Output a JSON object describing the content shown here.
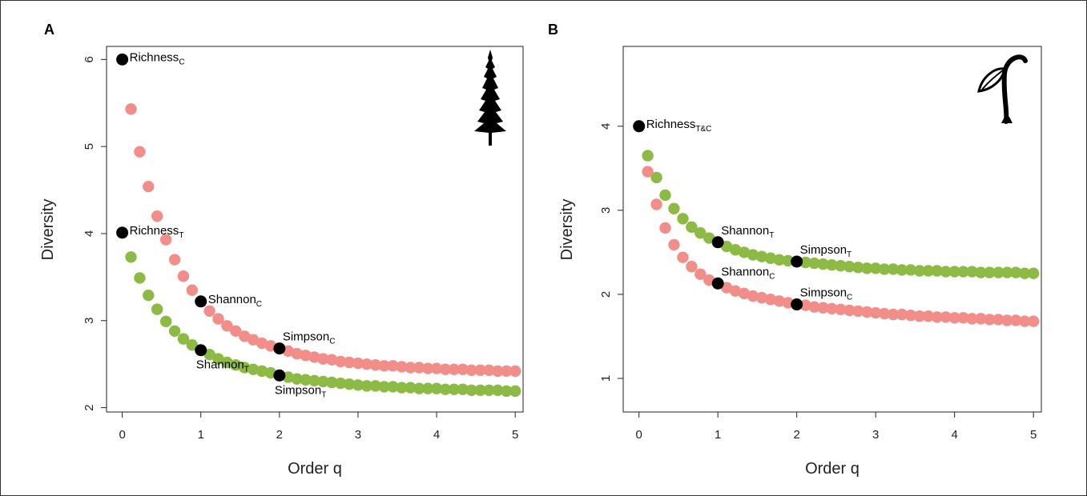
{
  "colors": {
    "series_C": "#f28e8a",
    "series_T": "#8dba45",
    "highlight": "#000000"
  },
  "chart_data": [
    {
      "panel": "A",
      "type": "scatter",
      "xlabel": "Order q",
      "ylabel": "Diversity",
      "xlim": [
        -0.2,
        5.1
      ],
      "ylim": [
        1.95,
        6.15
      ],
      "xticks": [
        "0",
        "1",
        "2",
        "3",
        "4",
        "5"
      ],
      "yticks": [
        "2",
        "3",
        "4",
        "5",
        "6"
      ],
      "icon": "conifer-tree-icon",
      "series": [
        {
          "key": "C",
          "x": [
            0.111,
            0.222,
            0.333,
            0.444,
            0.556,
            0.667,
            0.778,
            0.889,
            1.111,
            1.222,
            1.333,
            1.444,
            1.556,
            1.667,
            1.778,
            1.889,
            2.111,
            2.222,
            2.333,
            2.444,
            2.556,
            2.667,
            2.778,
            2.889,
            3.0,
            3.111,
            3.222,
            3.333,
            3.444,
            3.556,
            3.667,
            3.778,
            3.889,
            4.0,
            4.111,
            4.222,
            4.333,
            4.444,
            4.556,
            4.667,
            4.778,
            4.889,
            5.0
          ],
          "y": [
            5.43,
            4.94,
            4.54,
            4.2,
            3.93,
            3.7,
            3.51,
            3.35,
            3.11,
            3.02,
            2.94,
            2.88,
            2.82,
            2.78,
            2.74,
            2.71,
            2.65,
            2.62,
            2.6,
            2.58,
            2.56,
            2.55,
            2.53,
            2.52,
            2.51,
            2.5,
            2.49,
            2.48,
            2.48,
            2.47,
            2.46,
            2.46,
            2.45,
            2.45,
            2.44,
            2.44,
            2.44,
            2.43,
            2.43,
            2.43,
            2.42,
            2.42,
            2.42
          ]
        },
        {
          "key": "T",
          "x": [
            0.111,
            0.222,
            0.333,
            0.444,
            0.556,
            0.667,
            0.778,
            0.889,
            1.111,
            1.222,
            1.333,
            1.444,
            1.556,
            1.667,
            1.778,
            1.889,
            2.111,
            2.222,
            2.333,
            2.444,
            2.556,
            2.667,
            2.778,
            2.889,
            3.0,
            3.111,
            3.222,
            3.333,
            3.444,
            3.556,
            3.667,
            3.778,
            3.889,
            4.0,
            4.111,
            4.222,
            4.333,
            4.444,
            4.556,
            4.667,
            4.778,
            4.889,
            5.0
          ],
          "y": [
            3.73,
            3.49,
            3.29,
            3.13,
            2.99,
            2.88,
            2.79,
            2.72,
            2.61,
            2.56,
            2.52,
            2.49,
            2.46,
            2.44,
            2.42,
            2.4,
            2.35,
            2.33,
            2.32,
            2.31,
            2.3,
            2.29,
            2.28,
            2.27,
            2.26,
            2.25,
            2.25,
            2.24,
            2.24,
            2.23,
            2.23,
            2.22,
            2.22,
            2.22,
            2.21,
            2.21,
            2.21,
            2.2,
            2.2,
            2.2,
            2.2,
            2.19,
            2.19
          ]
        }
      ],
      "highlights": [
        {
          "x": 0,
          "y": 6.0,
          "label": "Richness",
          "sub": "C",
          "pos": "right"
        },
        {
          "x": 0,
          "y": 4.01,
          "label": "Richness",
          "sub": "T",
          "pos": "right"
        },
        {
          "x": 1,
          "y": 3.22,
          "label": "Shannon",
          "sub": "C",
          "pos": "right"
        },
        {
          "x": 1,
          "y": 2.66,
          "label": "Shannon",
          "sub": "T",
          "pos": "below-left"
        },
        {
          "x": 2,
          "y": 2.68,
          "label": "Simpson",
          "sub": "C",
          "pos": "above-right"
        },
        {
          "x": 2,
          "y": 2.37,
          "label": "Simpson",
          "sub": "T",
          "pos": "below-left"
        }
      ]
    },
    {
      "panel": "B",
      "type": "scatter",
      "xlabel": "Order q",
      "ylabel": "Diversity",
      "xlim": [
        -0.2,
        5.1
      ],
      "ylim": [
        0.6,
        4.95
      ],
      "xticks": [
        "0",
        "1",
        "2",
        "3",
        "4",
        "5"
      ],
      "yticks": [
        "1",
        "2",
        "3",
        "4"
      ],
      "icon": "seedling-icon",
      "series": [
        {
          "key": "T",
          "x": [
            0.111,
            0.222,
            0.333,
            0.444,
            0.556,
            0.667,
            0.778,
            0.889,
            1.111,
            1.222,
            1.333,
            1.444,
            1.556,
            1.667,
            1.778,
            1.889,
            2.111,
            2.222,
            2.333,
            2.444,
            2.556,
            2.667,
            2.778,
            2.889,
            3.0,
            3.111,
            3.222,
            3.333,
            3.444,
            3.556,
            3.667,
            3.778,
            3.889,
            4.0,
            4.111,
            4.222,
            4.333,
            4.444,
            4.556,
            4.667,
            4.778,
            4.889,
            5.0
          ],
          "y": [
            3.65,
            3.39,
            3.18,
            3.02,
            2.9,
            2.8,
            2.73,
            2.67,
            2.57,
            2.53,
            2.5,
            2.47,
            2.45,
            2.43,
            2.41,
            2.4,
            2.38,
            2.37,
            2.36,
            2.35,
            2.34,
            2.33,
            2.32,
            2.31,
            2.31,
            2.3,
            2.3,
            2.29,
            2.29,
            2.28,
            2.28,
            2.28,
            2.27,
            2.27,
            2.27,
            2.27,
            2.26,
            2.26,
            2.26,
            2.26,
            2.26,
            2.25,
            2.25
          ]
        },
        {
          "key": "C",
          "x": [
            0.111,
            0.222,
            0.333,
            0.444,
            0.556,
            0.667,
            0.778,
            0.889,
            1.111,
            1.222,
            1.333,
            1.444,
            1.556,
            1.667,
            1.778,
            1.889,
            2.111,
            2.222,
            2.333,
            2.444,
            2.556,
            2.667,
            2.778,
            2.889,
            3.0,
            3.111,
            3.222,
            3.333,
            3.444,
            3.556,
            3.667,
            3.778,
            3.889,
            4.0,
            4.111,
            4.222,
            4.333,
            4.444,
            4.556,
            4.667,
            4.778,
            4.889,
            5.0
          ],
          "y": [
            3.46,
            3.07,
            2.79,
            2.59,
            2.44,
            2.33,
            2.24,
            2.17,
            2.08,
            2.04,
            2.01,
            1.98,
            1.96,
            1.94,
            1.92,
            1.9,
            1.87,
            1.85,
            1.84,
            1.83,
            1.82,
            1.81,
            1.8,
            1.79,
            1.78,
            1.77,
            1.76,
            1.76,
            1.75,
            1.74,
            1.74,
            1.73,
            1.73,
            1.72,
            1.72,
            1.71,
            1.71,
            1.7,
            1.7,
            1.69,
            1.69,
            1.68,
            1.68
          ]
        }
      ],
      "highlights": [
        {
          "x": 0,
          "y": 4.0,
          "label": "Richness",
          "sub": "T&C",
          "pos": "right"
        },
        {
          "x": 1,
          "y": 2.62,
          "label": "Shannon",
          "sub": "T",
          "pos": "above-right"
        },
        {
          "x": 1,
          "y": 2.13,
          "label": "Shannon",
          "sub": "C",
          "pos": "above-right"
        },
        {
          "x": 2,
          "y": 2.39,
          "label": "Simpson",
          "sub": "T",
          "pos": "above-right"
        },
        {
          "x": 2,
          "y": 1.88,
          "label": "Simpson",
          "sub": "C",
          "pos": "above-right"
        }
      ]
    }
  ]
}
